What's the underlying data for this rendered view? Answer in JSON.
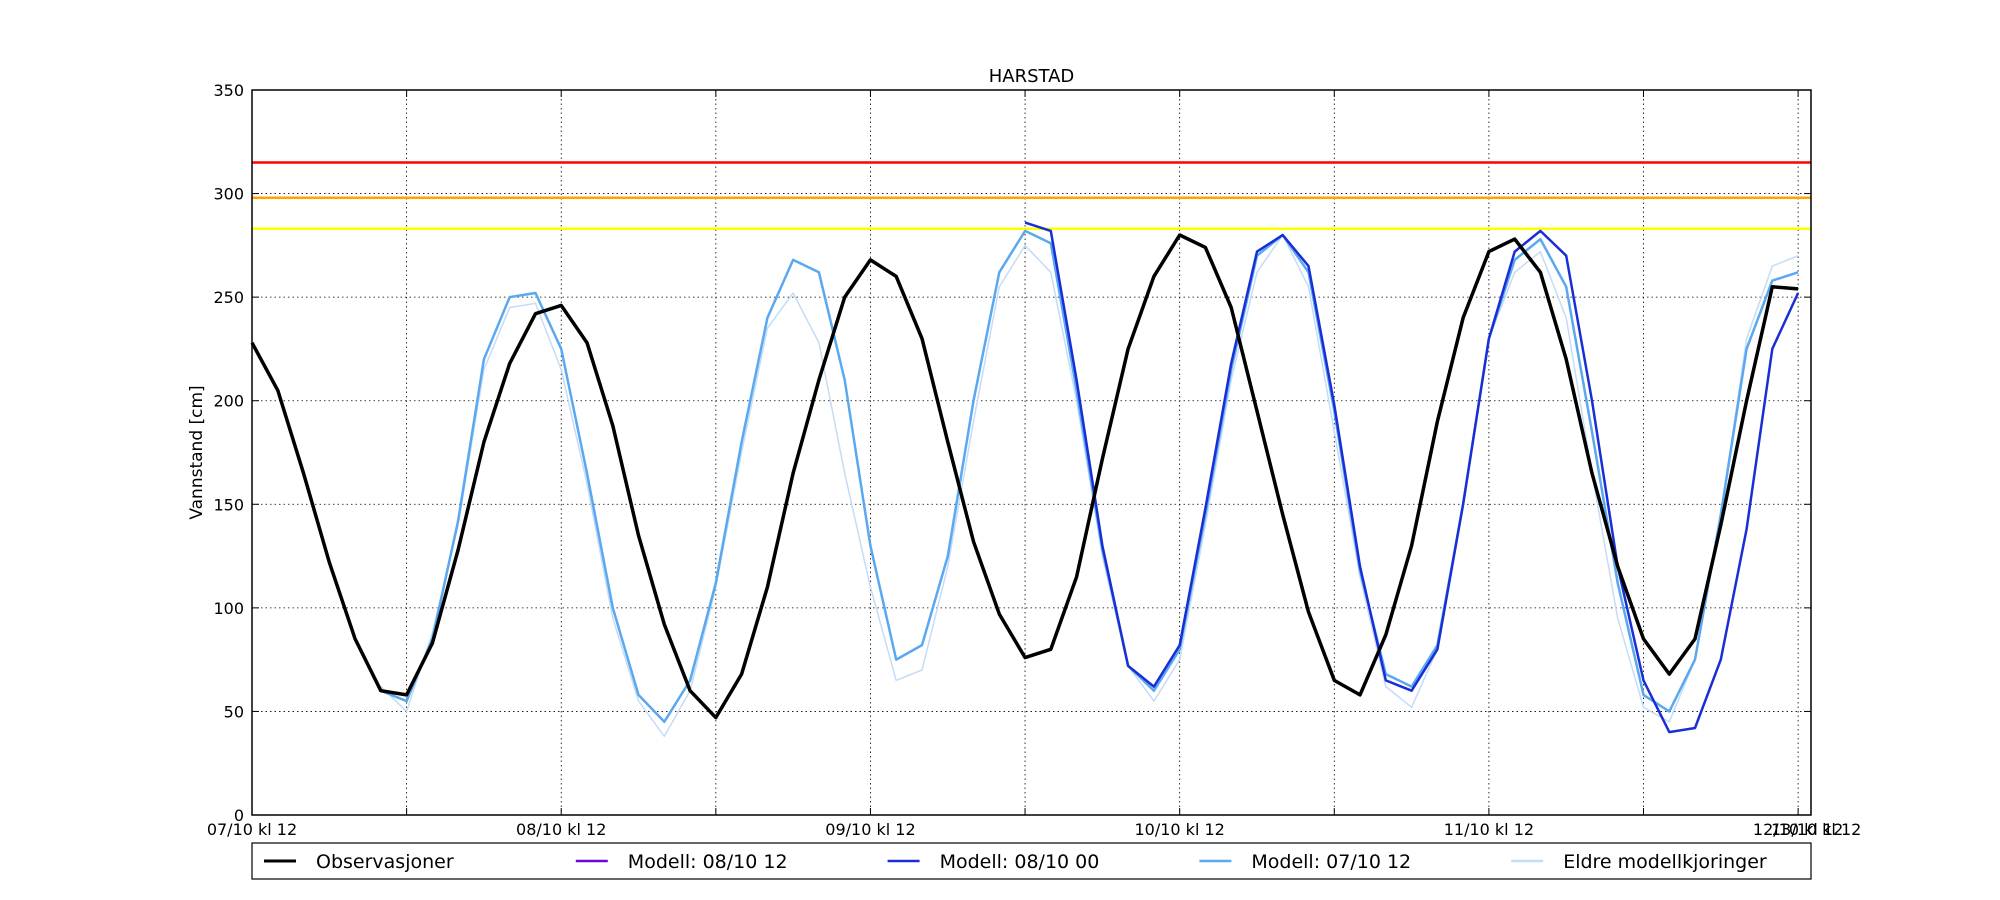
{
  "chart_data": {
    "type": "line",
    "title": "HARSTAD",
    "xlabel": "",
    "ylabel": "Vannstand [cm]",
    "ylim": [
      0,
      350
    ],
    "yticks": [
      0,
      50,
      100,
      150,
      200,
      250,
      300,
      350
    ],
    "xlim": [
      0,
      60.5
    ],
    "xticks": [
      {
        "x": 0,
        "label": "07/10 kl 12"
      },
      {
        "x": 12,
        "label": "08/10 kl 12"
      },
      {
        "x": 24,
        "label": "09/10 kl 12"
      },
      {
        "x": 36,
        "label": "10/10 kl 12"
      },
      {
        "x": 48,
        "label": "11/10 kl 12"
      },
      {
        "x": 60,
        "label": "12/10 kl 12"
      },
      {
        "x": 72,
        "label": "13/10 kl 12"
      }
    ],
    "x_unit_note_hidden": "",
    "grid": true,
    "thresholds": [
      {
        "value": 315,
        "color": "#ff0000"
      },
      {
        "value": 298,
        "color": "#ffa500"
      },
      {
        "value": 283,
        "color": "#ffff00"
      }
    ],
    "legend": {
      "placement": "bottom",
      "entries": [
        {
          "label": "Observasjoner",
          "color": "#000000"
        },
        {
          "label": "Modell: 08/10 12",
          "color": "#6a0ad8"
        },
        {
          "label": "Modell: 08/10 00",
          "color": "#1a2ed6"
        },
        {
          "label": "Modell: 07/10 12",
          "color": "#5aa8f0"
        },
        {
          "label": "Eldre modellkjoringer",
          "color": "#c4dcf6"
        }
      ]
    },
    "series": [
      {
        "name": "Eldre modellkjoringer",
        "color": "#c4dcf6",
        "values": [
          null,
          null,
          null,
          null,
          null,
          62,
          50,
          88,
          140,
          215,
          245,
          247,
          215,
          160,
          95,
          55,
          38,
          60,
          110,
          175,
          235,
          252,
          228,
          165,
          110,
          65,
          70,
          120,
          190,
          255,
          275,
          262,
          200,
          125,
          72,
          55,
          75,
          140,
          210,
          262,
          280,
          255,
          185,
          115,
          62,
          52,
          80,
          150,
          230,
          262,
          272,
          240,
          165,
          95,
          52,
          45,
          75,
          145,
          230,
          265,
          270
        ]
      },
      {
        "name": "Modell: 07/10 12",
        "color": "#5aa8f0",
        "values": [
          null,
          null,
          null,
          null,
          null,
          60,
          55,
          85,
          142,
          220,
          250,
          252,
          225,
          165,
          100,
          58,
          45,
          65,
          112,
          180,
          240,
          268,
          262,
          210,
          130,
          75,
          82,
          125,
          200,
          262,
          282,
          276,
          205,
          128,
          72,
          60,
          80,
          145,
          215,
          270,
          280,
          262,
          195,
          118,
          68,
          62,
          82,
          150,
          230,
          268,
          278,
          255,
          185,
          112,
          58,
          50,
          75,
          145,
          225,
          258,
          262
        ]
      },
      {
        "name": "Modell: 08/10 00",
        "color": "#1a2ed6",
        "values": [
          null,
          null,
          null,
          null,
          null,
          null,
          null,
          null,
          null,
          null,
          null,
          null,
          null,
          null,
          null,
          null,
          null,
          null,
          null,
          null,
          null,
          null,
          null,
          null,
          null,
          null,
          null,
          null,
          null,
          null,
          286,
          282,
          210,
          130,
          72,
          62,
          82,
          148,
          218,
          272,
          280,
          265,
          198,
          120,
          65,
          60,
          80,
          150,
          230,
          272,
          282,
          270,
          200,
          120,
          65,
          40,
          42,
          75,
          138,
          225,
          252
        ]
      },
      {
        "name": "Modell: 08/10 12",
        "color": "#6a0ad8",
        "values": [
          null,
          null,
          null,
          null,
          null,
          null,
          null,
          null,
          null,
          null,
          null,
          null,
          null,
          null,
          null,
          null,
          null,
          null,
          null,
          null,
          null,
          null,
          null,
          null,
          null,
          null,
          null,
          null,
          null,
          null,
          null,
          null,
          null,
          null,
          null,
          null,
          null,
          null,
          null,
          null,
          null,
          null,
          null,
          null,
          null,
          null,
          null,
          null,
          null,
          null,
          null,
          null,
          null,
          null,
          null,
          null,
          null,
          null,
          null,
          null,
          null
        ]
      },
      {
        "name": "Observasjoner",
        "color": "#000000",
        "values": [
          228,
          205,
          165,
          122,
          85,
          60,
          58,
          83,
          128,
          180,
          218,
          242,
          246,
          228,
          188,
          135,
          92,
          60,
          47,
          68,
          110,
          165,
          210,
          250,
          268,
          260,
          230,
          180,
          132,
          97,
          76,
          80,
          115,
          172,
          225,
          260,
          280,
          274,
          245,
          195,
          145,
          98,
          65,
          58,
          87,
          130,
          190,
          240,
          272,
          278,
          262,
          220,
          165,
          120,
          85,
          68,
          85,
          140,
          200,
          255,
          254
        ]
      }
    ]
  }
}
